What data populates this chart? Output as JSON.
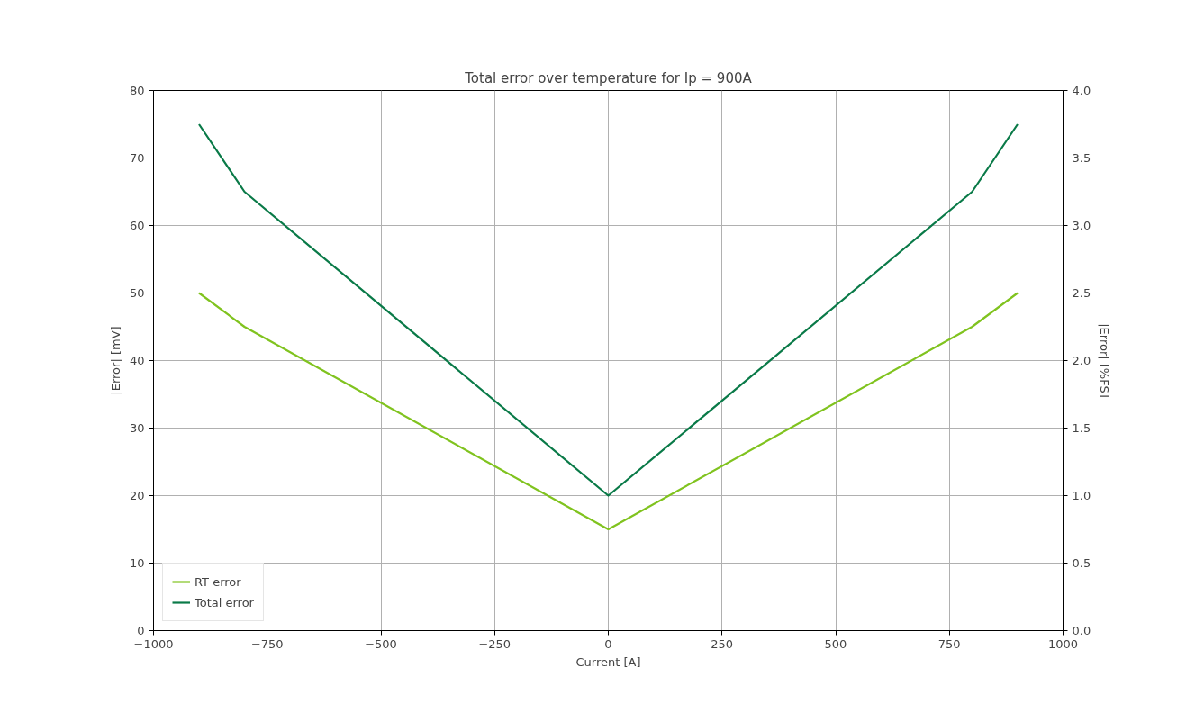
{
  "chart_data": {
    "type": "line",
    "title": "Total error over temperature for Ip = 900A",
    "xlabel": "Current [A]",
    "ylabel": "|Error| [mV]",
    "y2label": "|Error| [%FS]",
    "x": [
      -900,
      -800,
      0,
      800,
      900
    ],
    "series": [
      {
        "name": "RT error",
        "color": "#80c31f",
        "values": [
          50,
          45,
          15,
          45,
          50
        ]
      },
      {
        "name": "Total error",
        "color": "#0a7a48",
        "values": [
          75,
          65,
          20,
          65,
          75
        ]
      }
    ],
    "xlim": [
      -1000,
      1000
    ],
    "xticks": [
      {
        "value": -1000,
        "label": "−1000"
      },
      {
        "value": -750,
        "label": "−750"
      },
      {
        "value": -500,
        "label": "−500"
      },
      {
        "value": -250,
        "label": "−250"
      },
      0,
      250,
      500,
      750,
      1000
    ],
    "ylim": [
      0,
      80
    ],
    "yticks": [
      0,
      10,
      20,
      30,
      40,
      50,
      60,
      70,
      80
    ],
    "y2lim": [
      0,
      4
    ],
    "y2ticks": [
      {
        "value": 0,
        "label": "0.0"
      },
      {
        "value": 0.5,
        "label": "0.5"
      },
      {
        "value": 1,
        "label": "1.0"
      },
      {
        "value": 1.5,
        "label": "1.5"
      },
      {
        "value": 2,
        "label": "2.0"
      },
      {
        "value": 2.5,
        "label": "2.5"
      },
      {
        "value": 3,
        "label": "3.0"
      },
      {
        "value": 3.5,
        "label": "3.5"
      },
      {
        "value": 4,
        "label": "4.0"
      }
    ],
    "grid": true,
    "legend": "bottom left"
  }
}
